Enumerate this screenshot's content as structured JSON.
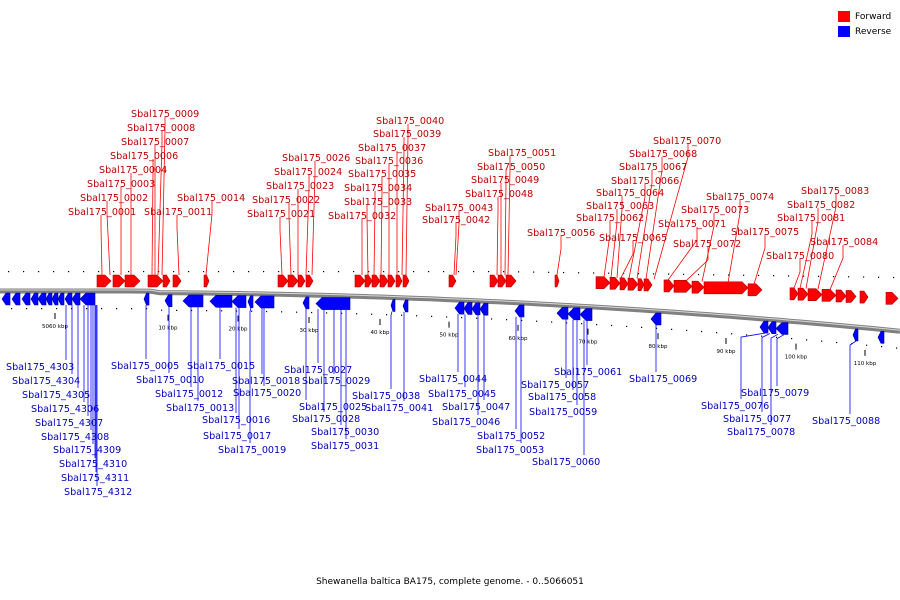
{
  "caption": "Shewanella baltica BA175, complete genome. - 0..5066051",
  "legend": [
    {
      "label": "Forward",
      "color": "#ff0000"
    },
    {
      "label": "Reverse",
      "color": "#0000ff"
    }
  ],
  "colors": {
    "forward": "#ff0000",
    "reverse": "#0000ff",
    "backbone": "#808080"
  },
  "ticks": [
    {
      "label": "5060 kbp"
    },
    {
      "label": "10 kbp"
    },
    {
      "label": "20 kbp"
    },
    {
      "label": "30 kbp"
    },
    {
      "label": "40 kbp"
    },
    {
      "label": "50 kbp"
    },
    {
      "label": "60 kbp"
    },
    {
      "label": "70 kbp"
    },
    {
      "label": "80 kbp"
    },
    {
      "label": "90 kbp"
    },
    {
      "label": "100 kbp"
    },
    {
      "label": "110 kbp"
    }
  ],
  "forward_genes": [
    "Sbal175_0001",
    "Sbal175_0002",
    "Sbal175_0003",
    "Sbal175_0004",
    "Sbal175_0006",
    "Sbal175_0007",
    "Sbal175_0008",
    "Sbal175_0009",
    "Sbal175_0011",
    "Sbal175_0014",
    "Sbal175_0021",
    "Sbal175_0022",
    "Sbal175_0023",
    "Sbal175_0024",
    "Sbal175_0026",
    "Sbal175_0032",
    "Sbal175_0033",
    "Sbal175_0034",
    "Sbal175_0035",
    "Sbal175_0036",
    "Sbal175_0037",
    "Sbal175_0039",
    "Sbal175_0040",
    "Sbal175_0042",
    "Sbal175_0043",
    "Sbal175_0048",
    "Sbal175_0049",
    "Sbal175_0050",
    "Sbal175_0051",
    "Sbal175_0056",
    "Sbal175_0062",
    "Sbal175_0063",
    "Sbal175_0064",
    "Sbal175_0065",
    "Sbal175_0066",
    "Sbal175_0067",
    "Sbal175_0068",
    "Sbal175_0070",
    "Sbal175_0071",
    "Sbal175_0072",
    "Sbal175_0073",
    "Sbal175_0074",
    "Sbal175_0075",
    "Sbal175_0080",
    "Sbal175_0081",
    "Sbal175_0082",
    "Sbal175_0083",
    "Sbal175_0084"
  ],
  "reverse_genes": [
    "Sbal175_4303",
    "Sbal175_4304",
    "Sbal175_4305",
    "Sbal175_4306",
    "Sbal175_4307",
    "Sbal175_4308",
    "Sbal175_4309",
    "Sbal175_4310",
    "Sbal175_4311",
    "Sbal175_4312",
    "Sbal175_0005",
    "Sbal175_0010",
    "Sbal175_0012",
    "Sbal175_0013",
    "Sbal175_0015",
    "Sbal175_0016",
    "Sbal175_0017",
    "Sbal175_0018",
    "Sbal175_0019",
    "Sbal175_0020",
    "Sbal175_0025",
    "Sbal175_0027",
    "Sbal175_0028",
    "Sbal175_0029",
    "Sbal175_0030",
    "Sbal175_0031",
    "Sbal175_0038",
    "Sbal175_0041",
    "Sbal175_0044",
    "Sbal175_0045",
    "Sbal175_0046",
    "Sbal175_0047",
    "Sbal175_0052",
    "Sbal175_0053",
    "Sbal175_0057",
    "Sbal175_0058",
    "Sbal175_0059",
    "Sbal175_0060",
    "Sbal175_0061",
    "Sbal175_0069",
    "Sbal175_0076",
    "Sbal175_0077",
    "Sbal175_0078",
    "Sbal175_0079",
    "Sbal175_0088"
  ]
}
